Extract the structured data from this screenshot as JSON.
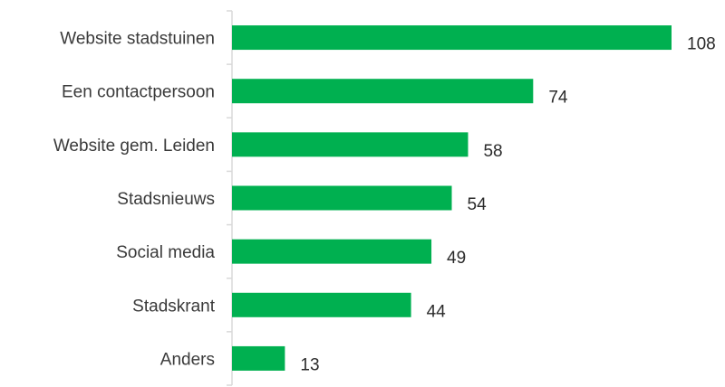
{
  "chart_data": {
    "type": "bar",
    "orientation": "horizontal",
    "categories": [
      "Website stadstuinen",
      "Een contactpersoon",
      "Website gem. Leiden",
      "Stadsnieuws",
      "Social media",
      "Stadskrant",
      "Anders"
    ],
    "values": [
      108,
      74,
      58,
      54,
      49,
      44,
      13
    ],
    "title": "",
    "xlabel": "",
    "ylabel": "",
    "xlim": [
      0,
      108
    ],
    "grid": false,
    "legend": "none",
    "data_labels": true,
    "bar_color": "#00b050"
  }
}
